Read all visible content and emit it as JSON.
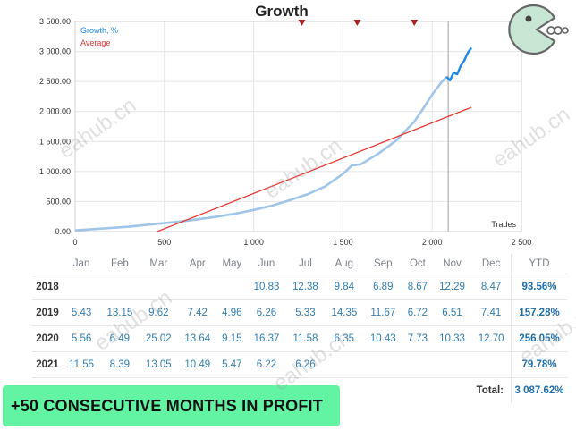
{
  "chart_data": {
    "type": "line",
    "title": "Growth",
    "xlabel": "Trades",
    "ylabel": "",
    "xlim": [
      0,
      2500
    ],
    "ylim": [
      0,
      3500
    ],
    "x_ticks": [
      "0",
      "500",
      "1 000",
      "1 500",
      "2 000",
      "2 500"
    ],
    "y_ticks": [
      "0.00",
      "500.00",
      "1 000.00",
      "1 500.00",
      "2 000.00",
      "2 500.00",
      "3 000.00",
      "3 500.00"
    ],
    "legend_placement": "top-left",
    "grid": true,
    "markers_x": [
      1270,
      1580,
      1900
    ],
    "vline_x": 2090,
    "series": [
      {
        "name": "Growth, %",
        "color": "#9fc5e8",
        "x": [
          0,
          100,
          200,
          300,
          400,
          500,
          600,
          700,
          800,
          900,
          1000,
          1100,
          1200,
          1300,
          1400,
          1500,
          1550,
          1600,
          1700,
          1800,
          1900,
          1950,
          2000,
          2050,
          2080
        ],
        "y": [
          20,
          40,
          60,
          80,
          110,
          140,
          170,
          210,
          250,
          300,
          360,
          430,
          520,
          620,
          750,
          960,
          1100,
          1120,
          1300,
          1520,
          1830,
          2050,
          2280,
          2480,
          2580
        ]
      },
      {
        "name": "Growth, %",
        "color": "#1e88e5",
        "x": [
          2080,
          2100,
          2120,
          2140,
          2160,
          2180,
          2200,
          2220
        ],
        "y": [
          2580,
          2520,
          2650,
          2620,
          2760,
          2850,
          2980,
          3060
        ]
      },
      {
        "name": "Average",
        "color": "#e53935",
        "x": [
          460,
          2220
        ],
        "y": [
          0,
          2070
        ]
      }
    ]
  },
  "legend": {
    "growth": "Growth, %",
    "average": "Average",
    "growth_color": "#1e88e5",
    "average_color": "#e53935"
  },
  "table": {
    "months": [
      "Jan",
      "Feb",
      "Mar",
      "Apr",
      "May",
      "Jun",
      "Jul",
      "Aug",
      "Sep",
      "Oct",
      "Nov",
      "Dec"
    ],
    "ytd_header": "YTD",
    "rows": [
      {
        "year": "2018",
        "values": [
          "",
          "",
          "",
          "",
          "",
          "10.83",
          "12.38",
          "9.84",
          "6.89",
          "8.67",
          "12.29",
          "8.47"
        ],
        "ytd": "93.56%"
      },
      {
        "year": "2019",
        "values": [
          "5.43",
          "13.15",
          "9.62",
          "7.42",
          "4.96",
          "6.26",
          "5.33",
          "14.35",
          "11.67",
          "6.72",
          "6.51",
          "7.41"
        ],
        "ytd": "157.28%"
      },
      {
        "year": "2020",
        "values": [
          "5.56",
          "6.49",
          "25.02",
          "13.64",
          "9.15",
          "16.37",
          "11.58",
          "6.35",
          "10.43",
          "7.73",
          "10.33",
          "12.70"
        ],
        "ytd": "256.05%"
      },
      {
        "year": "2021",
        "values": [
          "11.55",
          "8.39",
          "13.05",
          "10.49",
          "5.47",
          "6.22",
          "6.26",
          "",
          "",
          "",
          "",
          ""
        ],
        "ytd": "79.78%"
      }
    ],
    "total_label": "Total:",
    "total_value": "3 087.62%"
  },
  "banner": {
    "text": "+50 CONSECUTIVE MONTHS IN PROFIT",
    "color": "#62f3a3"
  },
  "watermark": "eahub.cn",
  "logo_icon": "pacman-logo-icon"
}
